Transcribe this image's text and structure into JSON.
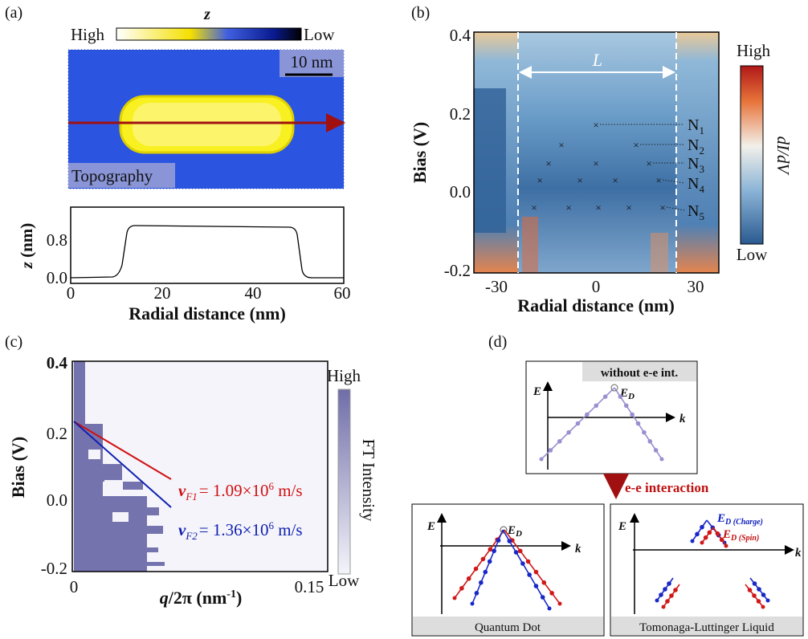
{
  "panels": {
    "a": {
      "label": "(a)",
      "colorbar": {
        "title": "z",
        "high": "High",
        "low": "Low"
      },
      "scale_bar": "10 nm",
      "image_label": "Topography",
      "profile": {
        "y_label": "z",
        "y_unit": " (nm)",
        "x_label": "Radial distance (nm)",
        "x_ticks": [
          "0",
          "20",
          "40",
          "60"
        ],
        "y_ticks": [
          "0.0",
          "0.8"
        ]
      }
    },
    "b": {
      "label": "(b)",
      "length_label": "L",
      "y_label": "Bias (V)",
      "x_label": "Radial distance (nm)",
      "y_ticks": [
        "0.4",
        "0.2",
        "0.0",
        "-0.2"
      ],
      "x_ticks": [
        "-30",
        "0",
        "30"
      ],
      "colorbar": {
        "high": "High",
        "low": "Low",
        "title": "dI/dV"
      },
      "states": [
        {
          "symbol": "N",
          "index": "1"
        },
        {
          "symbol": "N",
          "index": "2"
        },
        {
          "symbol": "N",
          "index": "3"
        },
        {
          "symbol": "N",
          "index": "4"
        },
        {
          "symbol": "N",
          "index": "5"
        }
      ]
    },
    "c": {
      "label": "(c)",
      "y_label": "Bias (V)",
      "x_label_parts": [
        "q",
        "/2π (nm",
        "-1",
        ")"
      ],
      "y_ticks": [
        "0.4",
        "0.2",
        "0.0",
        "-0.2"
      ],
      "x_ticks": [
        "0",
        "0.15"
      ],
      "colorbar": {
        "high": "High",
        "low": "Low",
        "title": "FT Intensity"
      },
      "fits": [
        {
          "v": "v",
          "sub": "F1",
          "text": "= 1.09×10",
          "sup": "6",
          "unit": " m/s"
        },
        {
          "v": "v",
          "sub": "F2",
          "text": "= 1.36×10",
          "sup": "6",
          "unit": " m/s"
        }
      ]
    },
    "d": {
      "label": "(d)",
      "transition": "e-e interaction",
      "top": {
        "title": "without e-e int.",
        "e_axis": "E",
        "k_axis": "k",
        "dirac": "E",
        "dirac_sub": "D"
      },
      "quantum_dot": {
        "title": "Quantum Dot",
        "e_axis": "E",
        "k_axis": "k",
        "dirac": "E",
        "dirac_sub": "D"
      },
      "tll": {
        "title": "Tomonaga-Luttinger Liquid",
        "e_axis": "E",
        "k_axis": "k",
        "charge": "E",
        "charge_sub": "D (Charge)",
        "spin": "E",
        "spin_sub": "D (Spin)"
      }
    }
  }
}
